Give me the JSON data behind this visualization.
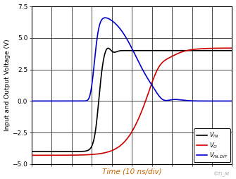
{
  "xlabel": "Time (10 ns/div)",
  "ylabel": "Input and Output Voltage (V)",
  "xlabel_color": "#cc6600",
  "xlim": [
    0,
    10
  ],
  "ylim": [
    -5,
    7.5
  ],
  "yticks": [
    -5,
    -2.5,
    0,
    2.5,
    5,
    7.5
  ],
  "xticks": [
    0,
    1,
    2,
    3,
    4,
    5,
    6,
    7,
    8,
    9,
    10
  ],
  "grid_color": "#000000",
  "background_color": "#ffffff",
  "legend_entries": [
    "$V_{IN}$",
    "$V_O$",
    "$V_{IN,DIF}$"
  ],
  "legend_colors": [
    "#000000",
    "#cc0000",
    "#0000cc"
  ],
  "watermark": "©TI_M"
}
